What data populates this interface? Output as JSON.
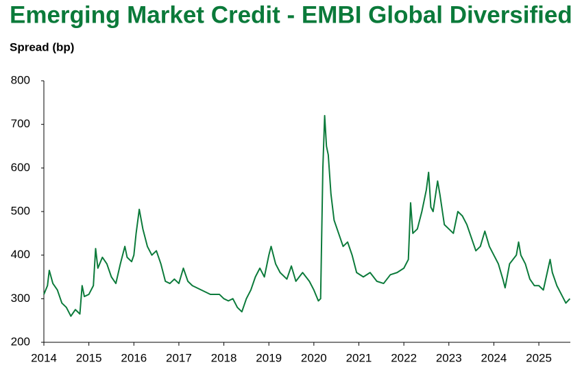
{
  "chart_data": {
    "type": "line",
    "title": "Emerging Market Credit - EMBI Global Diversified",
    "y_label": "Spread (bp)",
    "x": [
      2014.0,
      2014.08,
      2014.12,
      2014.2,
      2014.3,
      2014.4,
      2014.5,
      2014.6,
      2014.7,
      2014.8,
      2014.85,
      2014.9,
      2015.0,
      2015.1,
      2015.15,
      2015.2,
      2015.3,
      2015.4,
      2015.5,
      2015.6,
      2015.7,
      2015.8,
      2015.85,
      2015.95,
      2016.0,
      2016.05,
      2016.12,
      2016.2,
      2016.3,
      2016.4,
      2016.5,
      2016.6,
      2016.7,
      2016.8,
      2016.9,
      2017.0,
      2017.1,
      2017.2,
      2017.3,
      2017.5,
      2017.7,
      2017.9,
      2018.0,
      2018.1,
      2018.2,
      2018.3,
      2018.4,
      2018.5,
      2018.6,
      2018.7,
      2018.8,
      2018.9,
      2019.0,
      2019.05,
      2019.15,
      2019.25,
      2019.4,
      2019.5,
      2019.6,
      2019.75,
      2019.9,
      2020.0,
      2020.1,
      2020.15,
      2020.2,
      2020.24,
      2020.28,
      2020.32,
      2020.38,
      2020.45,
      2020.55,
      2020.65,
      2020.75,
      2020.85,
      2020.95,
      2021.1,
      2021.25,
      2021.4,
      2021.55,
      2021.7,
      2021.85,
      2022.0,
      2022.1,
      2022.15,
      2022.2,
      2022.3,
      2022.4,
      2022.5,
      2022.55,
      2022.6,
      2022.65,
      2022.75,
      2022.8,
      2022.9,
      2023.0,
      2023.1,
      2023.2,
      2023.3,
      2023.4,
      2023.5,
      2023.6,
      2023.7,
      2023.8,
      2023.9,
      2024.0,
      2024.1,
      2024.2,
      2024.25,
      2024.35,
      2024.5,
      2024.55,
      2024.6,
      2024.7,
      2024.8,
      2024.9,
      2025.0,
      2025.1,
      2025.25,
      2025.3,
      2025.4,
      2025.5,
      2025.6,
      2025.69
    ],
    "series": [
      {
        "name": "EMBI Global Diversified",
        "color": "#0b7a3a",
        "values": [
          310,
          330,
          365,
          335,
          320,
          290,
          280,
          260,
          275,
          265,
          330,
          305,
          310,
          330,
          415,
          370,
          395,
          380,
          350,
          335,
          380,
          420,
          395,
          385,
          400,
          450,
          505,
          460,
          420,
          400,
          410,
          380,
          340,
          335,
          345,
          335,
          370,
          340,
          330,
          320,
          310,
          310,
          300,
          295,
          300,
          280,
          270,
          300,
          320,
          350,
          370,
          350,
          400,
          420,
          380,
          360,
          345,
          375,
          340,
          360,
          340,
          320,
          295,
          300,
          600,
          720,
          650,
          630,
          540,
          480,
          450,
          420,
          430,
          400,
          360,
          350,
          360,
          340,
          335,
          355,
          360,
          370,
          390,
          520,
          450,
          460,
          500,
          550,
          590,
          510,
          500,
          570,
          540,
          470,
          460,
          450,
          500,
          490,
          470,
          440,
          410,
          420,
          455,
          420,
          400,
          380,
          345,
          325,
          380,
          400,
          430,
          400,
          380,
          345,
          330,
          330,
          320,
          390,
          360,
          330,
          310,
          290,
          300
        ]
      }
    ],
    "xlim": [
      2014,
      2025.7
    ],
    "xticks": [
      2014,
      2015,
      2016,
      2017,
      2018,
      2019,
      2020,
      2021,
      2022,
      2023,
      2024,
      2025
    ],
    "ylim": [
      200,
      800
    ],
    "yticks": [
      200,
      300,
      400,
      500,
      600,
      700,
      800
    ],
    "grid": false
  }
}
